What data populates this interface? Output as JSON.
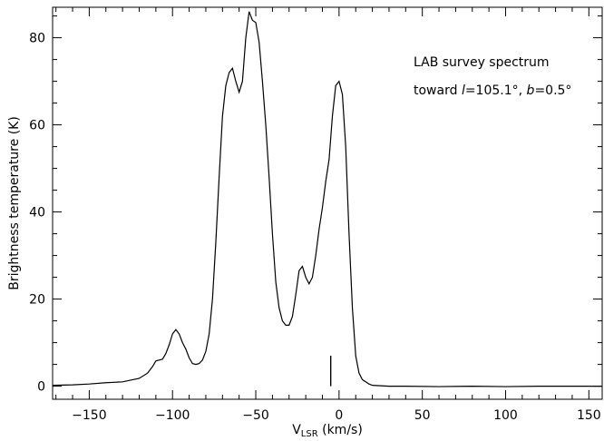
{
  "chart_data": {
    "type": "line",
    "xlabel": "V",
    "xlabel_sub": "LSR",
    "xlabel_unit": " (km/s)",
    "ylabel": "Brightness temperature (K)",
    "xlim": [
      -172,
      158
    ],
    "ylim": [
      -3,
      87
    ],
    "xticks": [
      -150,
      -100,
      -50,
      0,
      50,
      100,
      150
    ],
    "yticks": [
      0,
      20,
      40,
      60,
      80
    ],
    "xtick_labels": [
      "−150",
      "−100",
      "−50",
      "0",
      "50",
      "100",
      "150"
    ],
    "ytick_labels": [
      "0",
      "20",
      "40",
      "60",
      "80"
    ],
    "grid": false,
    "annotation": {
      "line1": "LAB survey spectrum",
      "line2_prefix": "toward ",
      "l_symbol": "l",
      "l_value": "=105.1°, ",
      "b_symbol": "b",
      "b_value": "=0.5°"
    },
    "marker": {
      "x": -5,
      "y0": 0,
      "y1": 7
    },
    "series": [
      {
        "x": [
          -172,
          -160,
          -150,
          -140,
          -130,
          -120,
          -115,
          -112,
          -110,
          -108,
          -106,
          -104,
          -102,
          -100,
          -98,
          -96,
          -94,
          -92,
          -90,
          -88,
          -86,
          -84,
          -82,
          -80,
          -78,
          -76,
          -74,
          -72,
          -70,
          -68,
          -66,
          -64,
          -62,
          -60,
          -58,
          -56,
          -54,
          -52,
          -50,
          -48,
          -46,
          -44,
          -42,
          -40,
          -38,
          -36,
          -34,
          -32,
          -30,
          -28,
          -26,
          -24,
          -22,
          -20,
          -18,
          -16,
          -14,
          -12,
          -10,
          -8,
          -6,
          -4,
          -2,
          0,
          2,
          4,
          6,
          8,
          10,
          12,
          14,
          16,
          18,
          20,
          25,
          30,
          40,
          60,
          80,
          100,
          120,
          140,
          158
        ],
        "y": [
          0.2,
          0.3,
          0.5,
          0.8,
          1.0,
          1.8,
          3.0,
          4.5,
          5.8,
          6.0,
          6.2,
          7.5,
          9.5,
          12.0,
          13.0,
          12.0,
          10.0,
          8.5,
          6.5,
          5.2,
          5.0,
          5.2,
          6.0,
          8.0,
          12.0,
          20.0,
          33.0,
          48.0,
          62.0,
          69.0,
          72.0,
          73.0,
          70.0,
          67.5,
          70.0,
          80.0,
          86.0,
          84.0,
          83.5,
          79.0,
          70.0,
          60.0,
          48.0,
          35.0,
          24.0,
          18.0,
          15.0,
          14.0,
          14.0,
          16.0,
          21.0,
          26.5,
          27.5,
          25.0,
          23.5,
          25.0,
          30.0,
          36.0,
          41.0,
          47.0,
          52.0,
          62.0,
          69.0,
          70.0,
          67.0,
          55.0,
          35.0,
          18.0,
          7.0,
          3.0,
          1.5,
          1.0,
          0.5,
          0.2,
          0.1,
          0.0,
          0.0,
          -0.1,
          0.0,
          -0.1,
          0.0,
          0.0,
          0.0
        ]
      }
    ]
  }
}
